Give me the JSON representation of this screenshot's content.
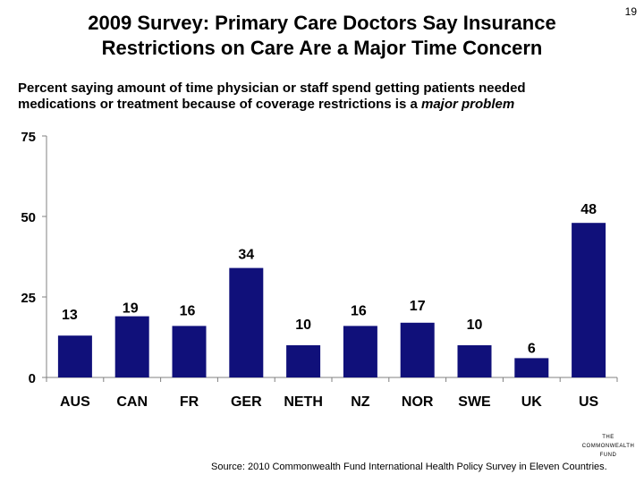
{
  "slide_number": "19",
  "title_line1": "2009 Survey: Primary Care Doctors Say Insurance",
  "title_line2": "Restrictions on Care Are a Major Time Concern",
  "subtitle_line1": "Percent saying amount of time physician or staff spend getting patients needed",
  "subtitle_line2_plain": "medications or treatment because of coverage restrictions is a ",
  "subtitle_line2_emph": "major problem",
  "source": "Source: 2010 Commonwealth Fund International Health Policy Survey in Eleven Countries.",
  "logo": {
    "line1": "THE",
    "line2": "COMMONWEALTH",
    "line3": "FUND"
  },
  "colors": {
    "bar": "#10107a",
    "axis": "#808080"
  },
  "chart_data": {
    "type": "bar",
    "categories": [
      "AUS",
      "CAN",
      "FR",
      "GER",
      "NETH",
      "NZ",
      "NOR",
      "SWE",
      "UK",
      "US"
    ],
    "values": [
      13,
      19,
      16,
      34,
      10,
      16,
      17,
      10,
      6,
      48
    ],
    "ylim": [
      0,
      75
    ],
    "yticks": [
      0,
      25,
      50,
      75
    ],
    "grid": false
  }
}
